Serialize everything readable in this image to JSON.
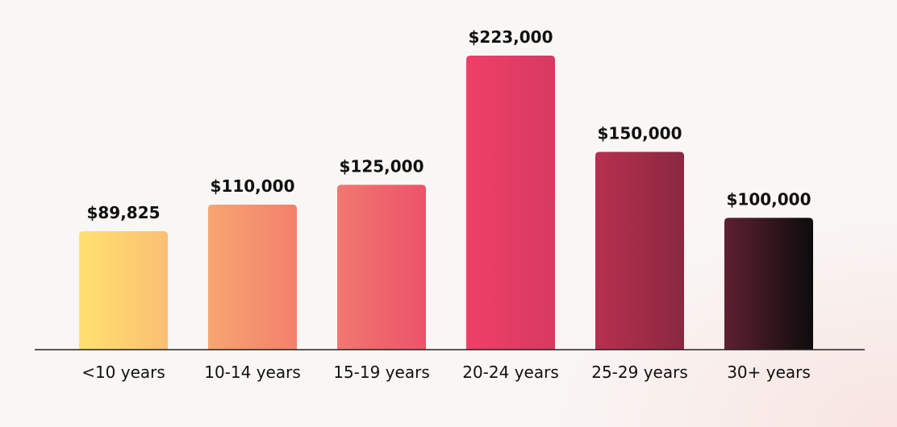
{
  "chart_data": {
    "type": "bar",
    "categories": [
      "<10 years",
      "10-14 years",
      "15-19 years",
      "20-24 years",
      "25-29 years",
      "30+ years"
    ],
    "values": [
      89825,
      110000,
      125000,
      223000,
      150000,
      100000
    ],
    "data_labels": [
      "$89,825",
      "$110,000",
      "$125,000",
      "$223,000",
      "$150,000",
      "$100,000"
    ],
    "title": "",
    "xlabel": "",
    "ylabel": "",
    "ylim": [
      0,
      223000
    ],
    "grid": false,
    "legend": "none",
    "bar_gradients": [
      [
        "#ffe16f",
        "#f9bf72"
      ],
      [
        "#f7a672",
        "#f2806b"
      ],
      [
        "#f07870",
        "#ec5369"
      ],
      [
        "#f03f68",
        "#d63a60"
      ],
      [
        "#b7304f",
        "#8a2840"
      ],
      [
        "#5e2030",
        "#0c0c0c"
      ]
    ],
    "axis_color": "#222222",
    "text_color": "#111111"
  }
}
